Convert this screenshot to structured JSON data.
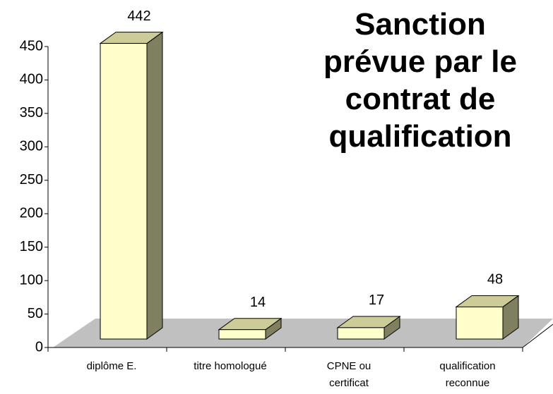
{
  "chart_data": {
    "type": "bar3d",
    "title": "Sanction\nprévue par le\ncontrat de\nqualification",
    "categories": [
      "diplôme E.",
      "titre homologué",
      "CPNE ou\ncertificat",
      "qualification\nreconnue"
    ],
    "values": [
      442,
      14,
      17,
      48
    ],
    "color": "#ffffcc",
    "ylim": [
      0,
      450
    ],
    "yticks": [
      0,
      50,
      100,
      150,
      200,
      250,
      300,
      350,
      400,
      450
    ]
  }
}
